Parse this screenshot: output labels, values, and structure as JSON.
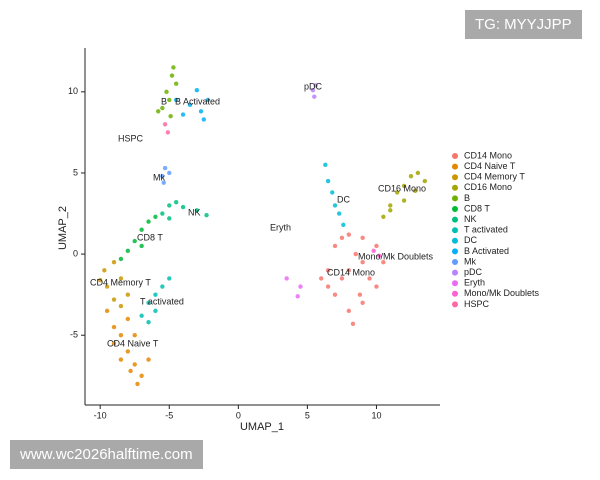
{
  "chart_data": {
    "type": "scatter",
    "xlabel": "UMAP_1",
    "ylabel": "UMAP_2",
    "xlim": [
      -11.1,
      14.6
    ],
    "ylim": [
      -9.3,
      12.7
    ],
    "xticks": [
      -10,
      -5,
      0,
      5,
      10
    ],
    "yticks": [
      -5,
      0,
      5,
      10
    ],
    "legend": "right",
    "series": [
      {
        "name": "CD14 Mono",
        "color": "#F8766D",
        "x": [
          6.5,
          7,
          7.5,
          8,
          9,
          10,
          10.5,
          10,
          9,
          8,
          8.3,
          7,
          6.5,
          8,
          9,
          8.5,
          7.5,
          9.5,
          6,
          8.8
        ],
        "y": [
          -1,
          0.5,
          1,
          1.2,
          1,
          0.5,
          -0.5,
          -2,
          -3,
          -3.5,
          -4.3,
          -2.5,
          -2,
          -1,
          -0.5,
          0,
          -1.5,
          -1.5,
          -1.5,
          -2.5
        ]
      },
      {
        "name": "CD4 Naive T",
        "color": "#E58700",
        "x": [
          -9.5,
          -9,
          -8.5,
          -8,
          -7.5,
          -7,
          -7.3,
          -8.5,
          -9,
          -7.5,
          -8,
          -6.5,
          -7.8
        ],
        "y": [
          -3.5,
          -4.5,
          -5,
          -6,
          -6.8,
          -7.5,
          -8,
          -6.5,
          -5.5,
          -5,
          -4,
          -6.5,
          -7.2
        ]
      },
      {
        "name": "CD4 Memory T",
        "color": "#C99800",
        "x": [
          -9.7,
          -9,
          -8.5,
          -9.5,
          -8,
          -9,
          -8.5,
          -10
        ],
        "y": [
          -1,
          -0.5,
          -1.5,
          -2,
          -2.5,
          -2.8,
          -3.2,
          -1.6
        ]
      },
      {
        "name": "CD16 Mono",
        "color": "#A3A500",
        "x": [
          11,
          11.5,
          12,
          12.5,
          13,
          13.5,
          12,
          11,
          10.5,
          12.8
        ],
        "y": [
          3,
          3.8,
          4.2,
          4.8,
          5,
          4.5,
          3.3,
          2.7,
          2.3,
          3.9
        ]
      },
      {
        "name": "B",
        "color": "#6BB100",
        "x": [
          -5.5,
          -5.2,
          -4.8,
          -4.7,
          -5,
          -5.8,
          -4.9,
          -4.5
        ],
        "y": [
          9,
          10,
          11,
          11.5,
          9.5,
          8.8,
          8.5,
          10.5
        ]
      },
      {
        "name": "CD8 T",
        "color": "#00BA38",
        "x": [
          -8,
          -7.5,
          -7,
          -6.5,
          -6,
          -7,
          -8.5
        ],
        "y": [
          0.2,
          0.8,
          1.5,
          2,
          2.3,
          0.5,
          -0.3
        ]
      },
      {
        "name": "NK",
        "color": "#00BF7D",
        "x": [
          -5.5,
          -5,
          -4.5,
          -4,
          -3,
          -2.3,
          -5
        ],
        "y": [
          2.5,
          3,
          3.2,
          2.9,
          2.7,
          2.4,
          2.2
        ]
      },
      {
        "name": "T activated",
        "color": "#00C0AF",
        "x": [
          -7,
          -6.5,
          -6,
          -5.5,
          -5,
          -6.5,
          -6
        ],
        "y": [
          -3.8,
          -3,
          -2.5,
          -2,
          -1.5,
          -4.2,
          -3.5
        ]
      },
      {
        "name": "DC",
        "color": "#00BCD8",
        "x": [
          6.3,
          6.5,
          6.8,
          7,
          7.3,
          7.6
        ],
        "y": [
          5.5,
          4.5,
          3.8,
          3,
          2.5,
          1.8
        ]
      },
      {
        "name": "B Activated",
        "color": "#00B0F6",
        "x": [
          -4.5,
          -3.5,
          -2.7,
          -2.2,
          -3,
          -4,
          -2.5
        ],
        "y": [
          9.5,
          9.2,
          8.8,
          9.5,
          10.1,
          8.6,
          8.3
        ]
      },
      {
        "name": "Mk",
        "color": "#619CFF",
        "x": [
          -5.5,
          -5.3,
          -5,
          -5.4
        ],
        "y": [
          4.8,
          5.3,
          5,
          4.4
        ]
      },
      {
        "name": "pDC",
        "color": "#B983FF",
        "x": [
          5.4,
          5.6,
          5.5
        ],
        "y": [
          10.1,
          10.4,
          9.7
        ]
      },
      {
        "name": "Eryth",
        "color": "#E76BF3",
        "x": [
          3.5,
          4.5,
          4.3
        ],
        "y": [
          -1.5,
          -2,
          -2.6
        ]
      },
      {
        "name": "Mono/Mk Doublets",
        "color": "#FD61D1",
        "x": [
          10.2,
          9.8
        ],
        "y": [
          -0.1,
          0.2
        ]
      },
      {
        "name": "HSPC",
        "color": "#FF67A4",
        "x": [
          -5.1,
          -5.3
        ],
        "y": [
          7.5,
          8
        ]
      }
    ],
    "annotations": [
      "B",
      "B Activated",
      "HSPC",
      "pDC",
      "Mk",
      "NK",
      "DC",
      "CD16 Mono",
      "Eryth",
      "CD8 T",
      "Mono/Mk Doublets",
      "CD14 Mono",
      "CD4 Memory T",
      "T activated",
      "CD4 Naive T"
    ]
  },
  "watermarks": [
    "TG: MYYJJPP",
    "www.wc2026halftime.com"
  ]
}
